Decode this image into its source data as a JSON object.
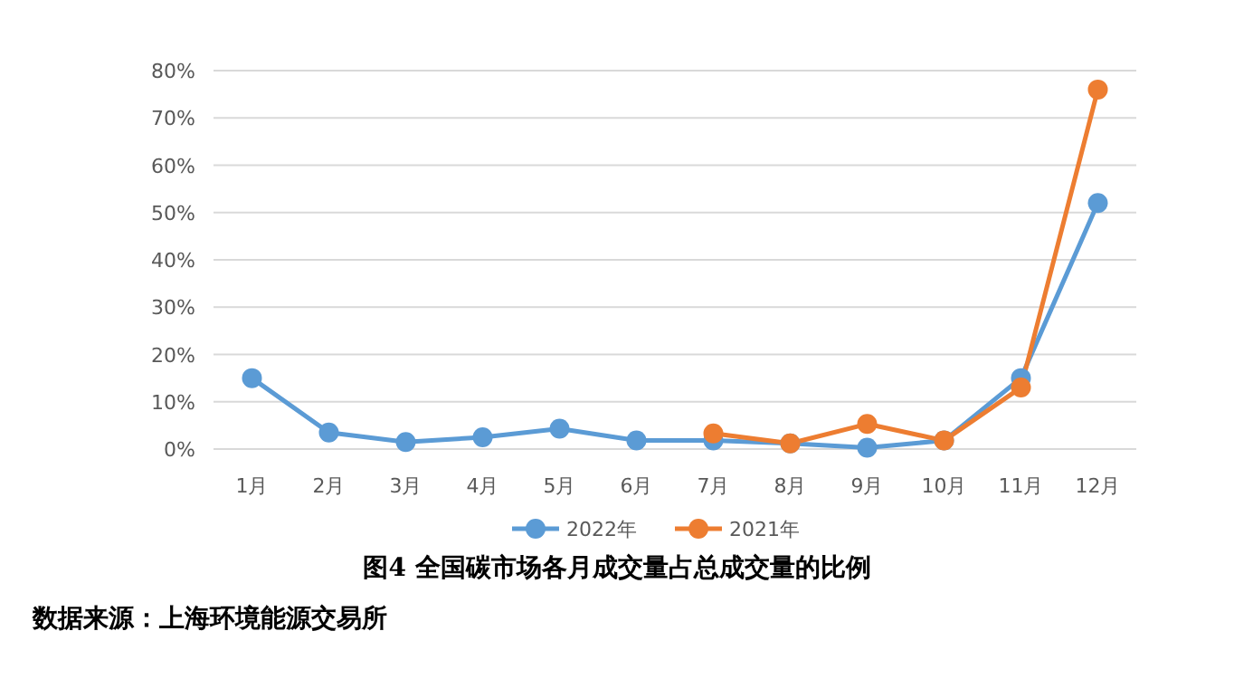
{
  "chart_data": {
    "type": "line",
    "title": "图4  全国碳市场各月成交量占总成交量的比例",
    "categories": [
      "1月",
      "2月",
      "3月",
      "4月",
      "5月",
      "6月",
      "7月",
      "8月",
      "9月",
      "10月",
      "11月",
      "12月"
    ],
    "series": [
      {
        "name": "2022年",
        "color": "#5b9bd5",
        "values": [
          15,
          3.5,
          1.5,
          2.5,
          4.3,
          1.8,
          1.8,
          1.2,
          0.3,
          1.8,
          15,
          52
        ]
      },
      {
        "name": "2021年",
        "color": "#ed7d31",
        "values": [
          null,
          null,
          null,
          null,
          null,
          null,
          3.3,
          1.2,
          5.3,
          1.8,
          13,
          76
        ]
      }
    ],
    "ylim": [
      0,
      80
    ],
    "yticks": [
      {
        "value": 0,
        "label": "0%"
      },
      {
        "value": 10,
        "label": "10%"
      },
      {
        "value": 20,
        "label": "20%"
      },
      {
        "value": 30,
        "label": "30%"
      },
      {
        "value": 40,
        "label": "40%"
      },
      {
        "value": 50,
        "label": "50%"
      },
      {
        "value": 60,
        "label": "60%"
      },
      {
        "value": 70,
        "label": "70%"
      },
      {
        "value": 80,
        "label": "80%"
      }
    ],
    "grid": "y",
    "legend": "bottom",
    "marker": "circle",
    "annotations": [
      "数据来源：上海环境能源交易所"
    ]
  }
}
